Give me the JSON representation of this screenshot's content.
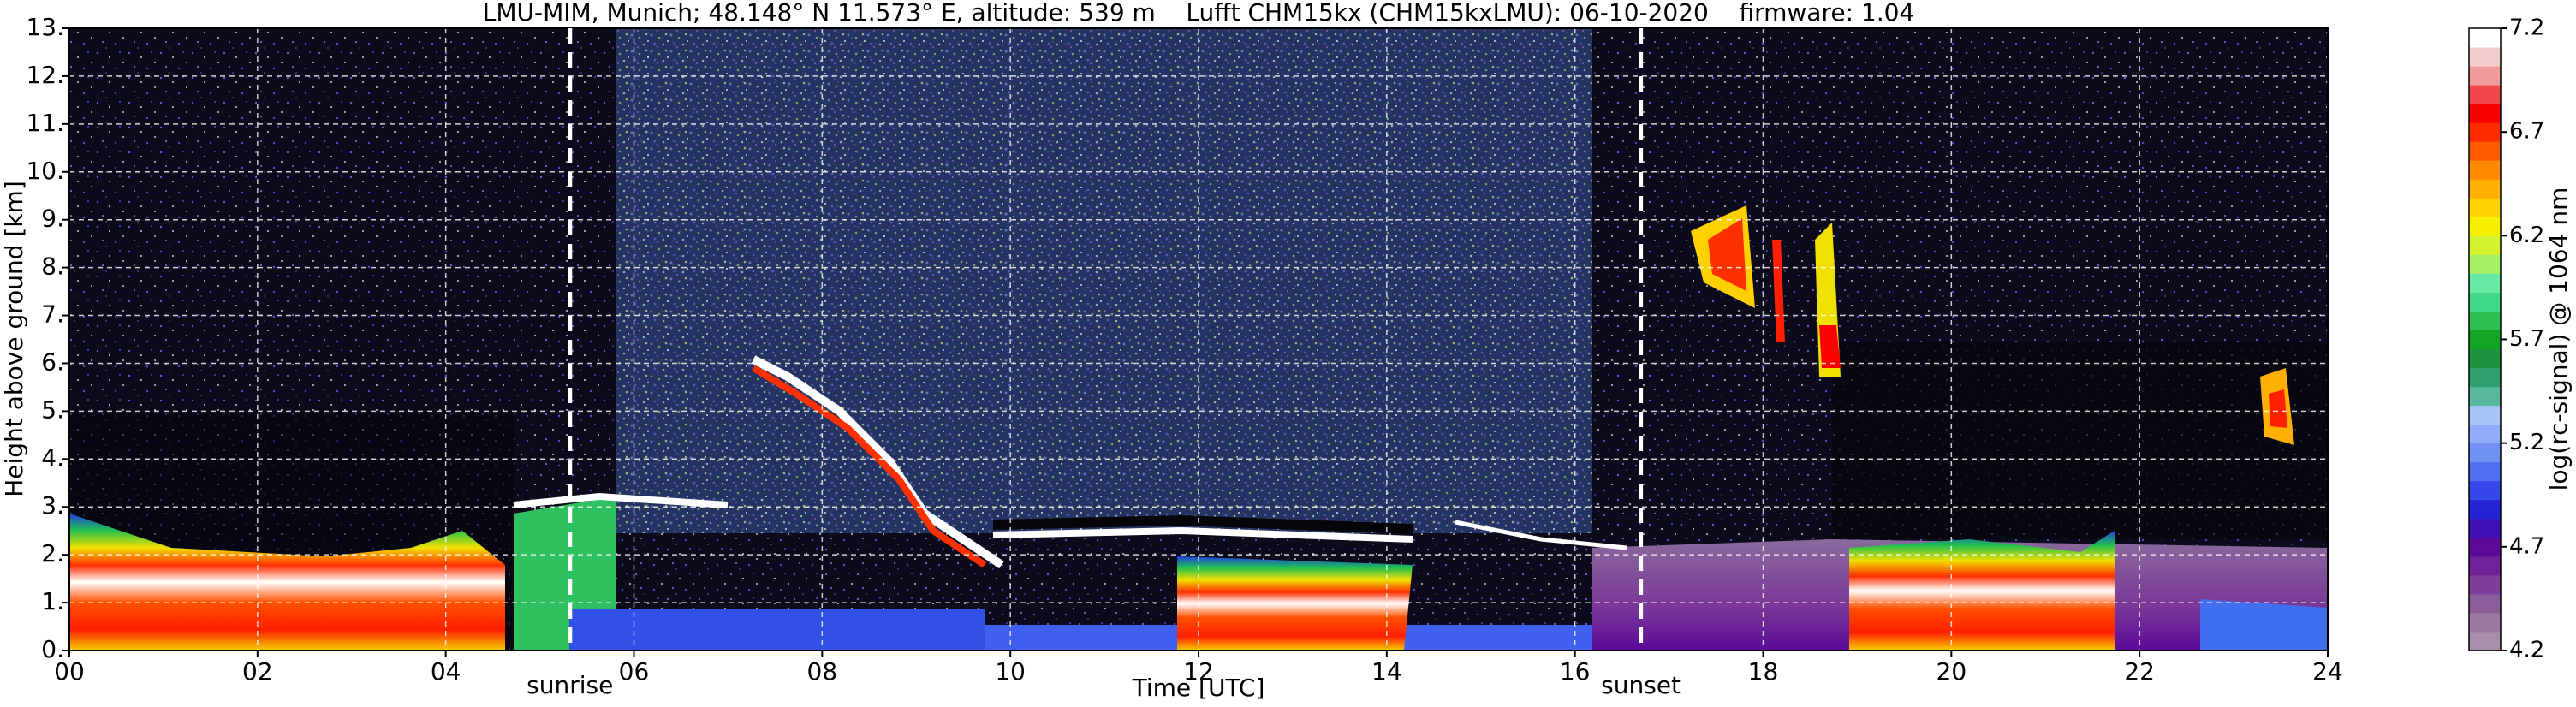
{
  "chart_data": {
    "type": "heatmap",
    "title": "LMU-MIM, Munich; 48.148° N 11.573° E, altitude: 539 m    Lufft CHM15kx (CHM15kxLMU): 06-10-2020    firmware: 1.04",
    "xlabel": "Time [UTC]",
    "ylabel": "Height above ground [km]",
    "xlim": [
      0,
      24
    ],
    "xticks": [
      {
        "value": 0,
        "label": "00"
      },
      {
        "value": 2,
        "label": "02"
      },
      {
        "value": 4,
        "label": "04"
      },
      {
        "value": 6,
        "label": "06"
      },
      {
        "value": 8,
        "label": "08"
      },
      10,
      12,
      14,
      16,
      18,
      20,
      22,
      24
    ],
    "ylim": [
      0,
      13
    ],
    "yticks": [
      {
        "value": 0,
        "label": "0."
      },
      {
        "value": 1,
        "label": "1."
      },
      {
        "value": 2,
        "label": "2."
      },
      {
        "value": 3,
        "label": "3."
      },
      {
        "value": 4,
        "label": "4."
      },
      {
        "value": 5,
        "label": "5."
      },
      {
        "value": 6,
        "label": "6."
      },
      {
        "value": 7,
        "label": "7."
      },
      {
        "value": 8,
        "label": "8."
      },
      {
        "value": 9,
        "label": "9."
      },
      {
        "value": 10,
        "label": "10."
      },
      {
        "value": 11,
        "label": "11."
      },
      {
        "value": 12,
        "label": "12."
      },
      {
        "value": 13,
        "label": "13."
      }
    ],
    "grid": true,
    "annotations": [
      {
        "x": 5.32,
        "label": "sunrise"
      },
      {
        "x": 16.7,
        "label": "sunset"
      }
    ],
    "colorbar": {
      "label": "log(rc-signal) @ 1064 nm",
      "lim": [
        4.2,
        7.2
      ],
      "ticks": [
        4.2,
        4.7,
        5.2,
        5.7,
        6.2,
        6.7,
        7.2
      ],
      "colors": [
        "#a88ea8",
        "#9c78a0",
        "#8c5c9a",
        "#7c3e98",
        "#6c2298",
        "#5c0a98",
        "#4010b4",
        "#2424d4",
        "#3448ea",
        "#5070f0",
        "#7090f4",
        "#8eacf8",
        "#a6c4f8",
        "#58b89c",
        "#2ea070",
        "#1c9440",
        "#12a424",
        "#2cc052",
        "#40d884",
        "#66eaa4",
        "#a6f064",
        "#d4f230",
        "#f4f000",
        "#ffd200",
        "#ffb000",
        "#ff8a00",
        "#ff5c00",
        "#ff2c00",
        "#f80000",
        "#f04848",
        "#f09a9a",
        "#f2cccc",
        "#ffffff"
      ]
    }
  }
}
